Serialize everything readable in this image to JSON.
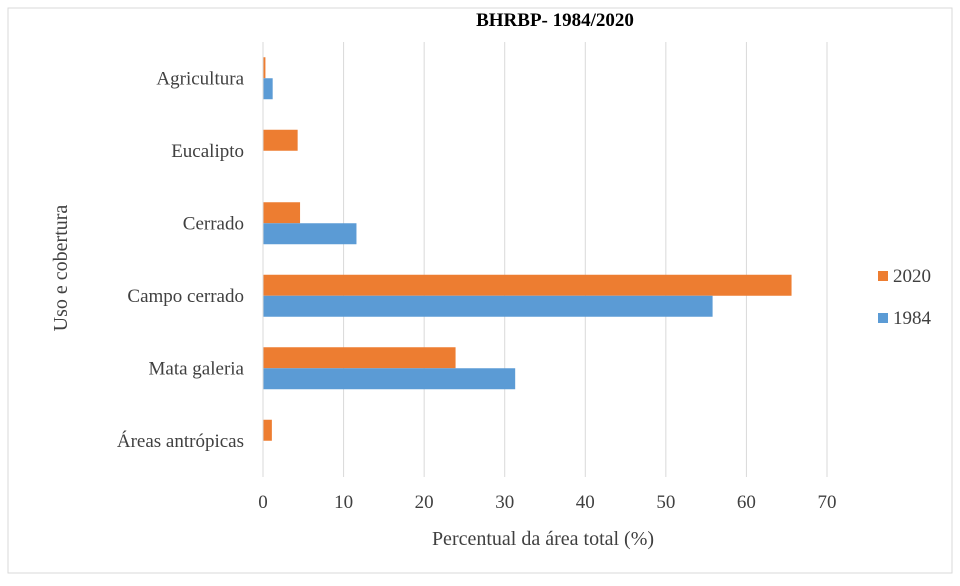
{
  "chart_data": {
    "type": "bar",
    "orientation": "horizontal",
    "title": "BHRBP- 1984/2020",
    "xlabel": "Percentual da área total (%)",
    "ylabel": "Uso e cobertura",
    "xlim": [
      0,
      70
    ],
    "x_ticks": [
      "0",
      "10",
      "20",
      "30",
      "40",
      "50",
      "60",
      "70"
    ],
    "categories": [
      "Agricultura",
      "Eucalipto",
      "Cerrado",
      "Campo cerrado",
      "Mata galeria",
      "Áreas antrópicas"
    ],
    "series": [
      {
        "name": "2020",
        "color": "#ED7D31",
        "values": [
          0.3,
          4.3,
          4.6,
          65.6,
          23.9,
          1.1
        ]
      },
      {
        "name": "1984",
        "color": "#5B9BD5",
        "values": [
          1.2,
          0,
          11.6,
          55.8,
          31.3,
          0
        ]
      }
    ],
    "legend_position": "right",
    "legend_order": [
      "2020",
      "1984"
    ],
    "grid": {
      "vertical": true,
      "horizontal": false,
      "color": "#D9D9D9"
    }
  }
}
